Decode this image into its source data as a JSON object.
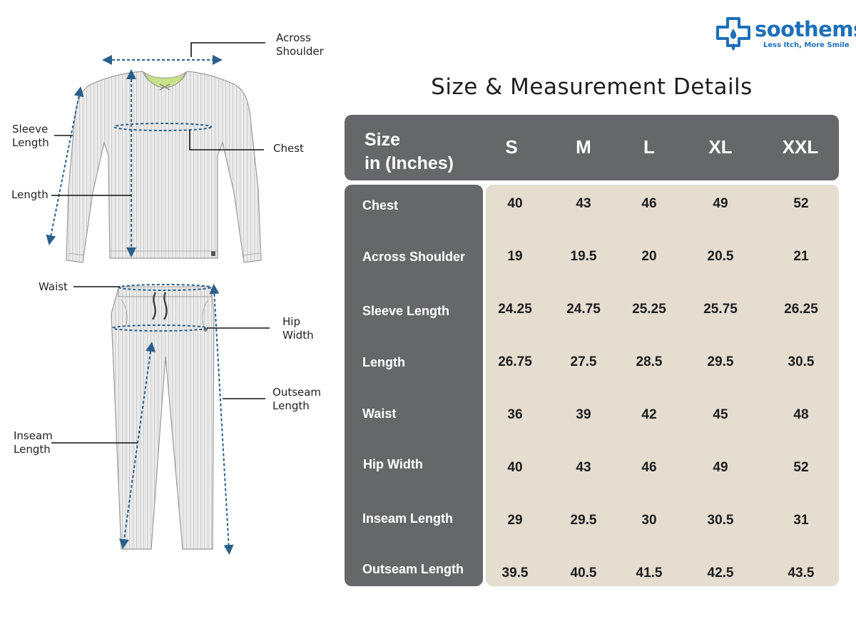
{
  "brand": {
    "name": "soothems",
    "tagline": "Less Itch, More Smile",
    "color": "#1d6fb8"
  },
  "title": "Size & Measurement Details",
  "diagram": {
    "labels": {
      "across_shoulder": "Across\nShoulder",
      "sleeve_length": "Sleeve\nLength",
      "chest": "Chest",
      "length": "Length",
      "waist": "Waist",
      "hip_width": "Hip\nWidth",
      "outseam_length": "Outseam\nLength",
      "inseam_length": "Inseam\nLength"
    }
  },
  "table": {
    "header_label": "Size\nin (Inches)",
    "sizes": [
      "S",
      "M",
      "L",
      "XL",
      "XXL"
    ],
    "rows": [
      {
        "label": "Chest",
        "values": [
          "40",
          "43",
          "46",
          "49",
          "52"
        ]
      },
      {
        "label": "Across Shoulder",
        "values": [
          "19",
          "19.5",
          "20",
          "20.5",
          "21"
        ]
      },
      {
        "label": "Sleeve Length",
        "values": [
          "24.25",
          "24.75",
          "25.25",
          "25.75",
          "26.25"
        ]
      },
      {
        "label": "Length",
        "values": [
          "26.75",
          "27.5",
          "28.5",
          "29.5",
          "30.5"
        ]
      },
      {
        "label": "Waist",
        "values": [
          "36",
          "39",
          "42",
          "45",
          "48"
        ]
      },
      {
        "label": "Hip Width",
        "values": [
          "40",
          "43",
          "46",
          "49",
          "52"
        ]
      },
      {
        "label": "Inseam Length",
        "values": [
          "29",
          "29.5",
          "30",
          "30.5",
          "31"
        ]
      },
      {
        "label": "Outseam Length",
        "values": [
          "39.5",
          "40.5",
          "41.5",
          "42.5",
          "43.5"
        ]
      }
    ]
  },
  "colors": {
    "header_bg": "#666769",
    "value_bg": "#e4ddd0",
    "measure_line": "#2a5f8a"
  }
}
